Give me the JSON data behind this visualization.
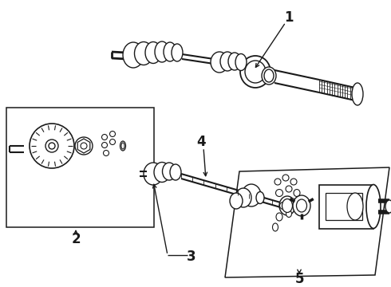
{
  "bg_color": "#ffffff",
  "line_color": "#1a1a1a",
  "lw": 1.1,
  "fig_w": 4.9,
  "fig_h": 3.6,
  "dpi": 100,
  "part1_label": "1",
  "part2_label": "2",
  "part3_label": "3",
  "part4_label": "4",
  "part5_label": "5"
}
